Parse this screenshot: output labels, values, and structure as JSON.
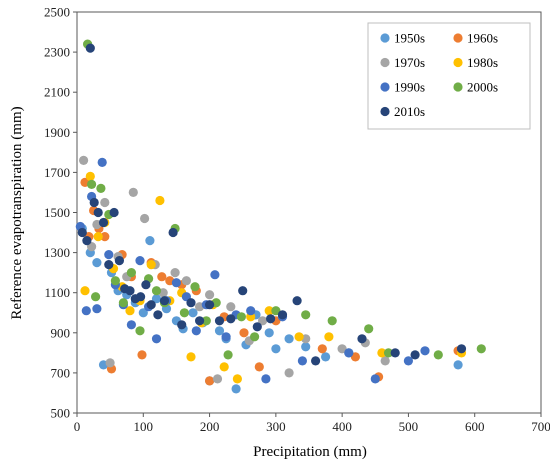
{
  "chart_data": {
    "type": "scatter",
    "title": "",
    "xlabel": "Precipitation (mm)",
    "ylabel": "Reference evapotranspiration (mm)",
    "xlim": [
      0,
      700
    ],
    "ylim": [
      500,
      2500
    ],
    "xticks": [
      0,
      100,
      200,
      300,
      400,
      500,
      600,
      700
    ],
    "yticks": [
      500,
      700,
      900,
      1100,
      1300,
      1500,
      1700,
      1900,
      2100,
      2300,
      2500
    ],
    "grid": false,
    "legend_position": "top-right",
    "series": [
      {
        "name": "1950s",
        "color": "#5B9BD5",
        "x": [
          8,
          20,
          30,
          40,
          52,
          62,
          75,
          88,
          100,
          110,
          120,
          135,
          150,
          160,
          175,
          190,
          200,
          215,
          225,
          240,
          255,
          270,
          290,
          300,
          320,
          345,
          375,
          410,
          575
        ],
        "y": [
          1420,
          1300,
          1250,
          740,
          1200,
          1110,
          1090,
          1050,
          1000,
          1360,
          1070,
          1020,
          960,
          920,
          1000,
          950,
          660,
          910,
          870,
          620,
          840,
          990,
          900,
          820,
          870,
          830,
          780,
          800,
          740
        ]
      },
      {
        "name": "1960s",
        "color": "#ED7D31",
        "x": [
          12,
          18,
          25,
          33,
          42,
          52,
          68,
          82,
          98,
          112,
          128,
          140,
          158,
          180,
          200,
          222,
          252,
          275,
          300,
          370,
          420,
          455,
          575
        ],
        "y": [
          1650,
          1380,
          1510,
          1420,
          1380,
          720,
          1290,
          1180,
          790,
          1250,
          1180,
          1160,
          1140,
          1110,
          660,
          980,
          900,
          730,
          960,
          820,
          780,
          680,
          810
        ]
      },
      {
        "name": "1970s",
        "color": "#A5A5A5",
        "x": [
          10,
          22,
          30,
          42,
          50,
          62,
          75,
          85,
          102,
          118,
          130,
          148,
          165,
          185,
          200,
          212,
          232,
          260,
          280,
          320,
          345,
          400,
          435,
          465
        ],
        "y": [
          1760,
          1330,
          1440,
          1550,
          750,
          1280,
          1180,
          1600,
          1470,
          1240,
          1100,
          1200,
          1160,
          1030,
          1090,
          670,
          1030,
          860,
          960,
          700,
          870,
          820,
          850,
          760
        ]
      },
      {
        "name": "1980s",
        "color": "#FFC000",
        "x": [
          12,
          20,
          32,
          42,
          55,
          68,
          80,
          95,
          112,
          125,
          140,
          158,
          172,
          188,
          205,
          222,
          242,
          262,
          290,
          335,
          380,
          460,
          580
        ],
        "y": [
          1110,
          1680,
          1380,
          1450,
          1220,
          1130,
          1010,
          1060,
          1240,
          1560,
          1060,
          1100,
          780,
          950,
          1040,
          730,
          670,
          980,
          1010,
          880,
          880,
          800,
          800
        ]
      },
      {
        "name": "1990s",
        "color": "#4472C4",
        "x": [
          5,
          14,
          22,
          30,
          38,
          48,
          58,
          70,
          82,
          95,
          108,
          120,
          135,
          150,
          165,
          180,
          195,
          208,
          225,
          240,
          262,
          285,
          310,
          340,
          410,
          450,
          500,
          525
        ],
        "y": [
          1430,
          1010,
          1580,
          1020,
          1750,
          1290,
          1140,
          1040,
          940,
          1260,
          1030,
          870,
          1060,
          1150,
          1080,
          910,
          1040,
          1190,
          880,
          990,
          1010,
          670,
          980,
          760,
          800,
          670,
          760,
          810
        ]
      },
      {
        "name": "2000s",
        "color": "#70AD47",
        "x": [
          16,
          22,
          28,
          36,
          48,
          58,
          70,
          82,
          95,
          108,
          120,
          132,
          148,
          162,
          178,
          195,
          210,
          228,
          248,
          268,
          300,
          345,
          385,
          440,
          470,
          545,
          610
        ],
        "y": [
          2340,
          1640,
          1080,
          1620,
          1490,
          1160,
          1050,
          1200,
          910,
          1170,
          1110,
          1050,
          1420,
          1000,
          1130,
          960,
          1050,
          790,
          980,
          880,
          1010,
          990,
          960,
          920,
          800,
          790,
          820
        ]
      },
      {
        "name": "2010s",
        "color": "#264478",
        "x": [
          8,
          15,
          20,
          26,
          32,
          40,
          48,
          56,
          64,
          72,
          80,
          88,
          96,
          104,
          112,
          122,
          132,
          145,
          158,
          172,
          185,
          200,
          215,
          232,
          250,
          272,
          292,
          310,
          332,
          360,
          430,
          480,
          510,
          580
        ],
        "y": [
          1400,
          1360,
          2320,
          1550,
          1500,
          1450,
          1240,
          1500,
          1260,
          1120,
          1110,
          1070,
          1080,
          1140,
          1040,
          990,
          1060,
          1400,
          940,
          1050,
          960,
          1040,
          960,
          970,
          1110,
          930,
          970,
          990,
          1060,
          760,
          870,
          800,
          790,
          820
        ]
      }
    ]
  }
}
